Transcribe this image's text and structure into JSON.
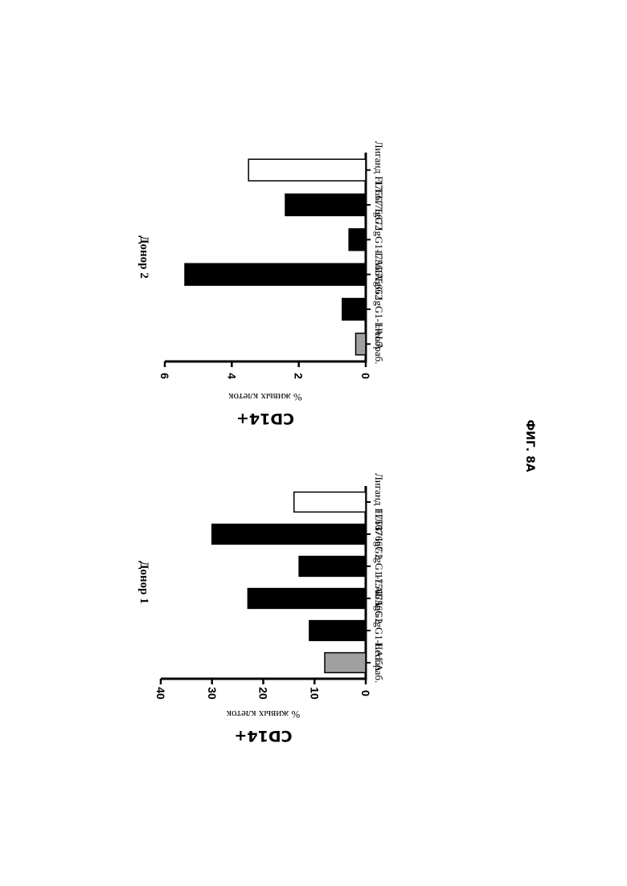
{
  "figure_label": "ФИГ. 8А",
  "chart_data": [
    {
      "type": "bar",
      "title": "Донор 1",
      "ylabel_main": "CD14+",
      "ylabel_sub": "% живых клеток",
      "categories": [
        "Необраб.",
        "17566 IgG1-LALA",
        "17566 IgG2",
        "17667 IgG1-LALA",
        "17667 IgG2",
        "Лиганд FLT3"
      ],
      "values": [
        8,
        11,
        23,
        13,
        30,
        14
      ],
      "colors": [
        "#a0a0a0",
        "#000000",
        "#000000",
        "#000000",
        "#000000",
        "#ffffff"
      ],
      "ylim": [
        0,
        40
      ],
      "yticks": [
        "0",
        "10",
        "20",
        "30",
        "40"
      ]
    },
    {
      "type": "bar",
      "title": "Донор 2",
      "ylabel_main": "CD14+",
      "ylabel_sub": "% живых клеток",
      "categories": [
        "Необраб.",
        "17566 IgG1-LALA",
        "17566 IgG2",
        "17667 IgG1-LALA",
        "17667 IgG2",
        "Лиганд FLT3"
      ],
      "values": [
        0.3,
        0.7,
        5.4,
        0.5,
        2.4,
        3.5
      ],
      "colors": [
        "#a0a0a0",
        "#000000",
        "#000000",
        "#000000",
        "#000000",
        "#ffffff"
      ],
      "ylim": [
        0,
        6
      ],
      "yticks": [
        "0",
        "2",
        "4",
        "6"
      ]
    }
  ]
}
